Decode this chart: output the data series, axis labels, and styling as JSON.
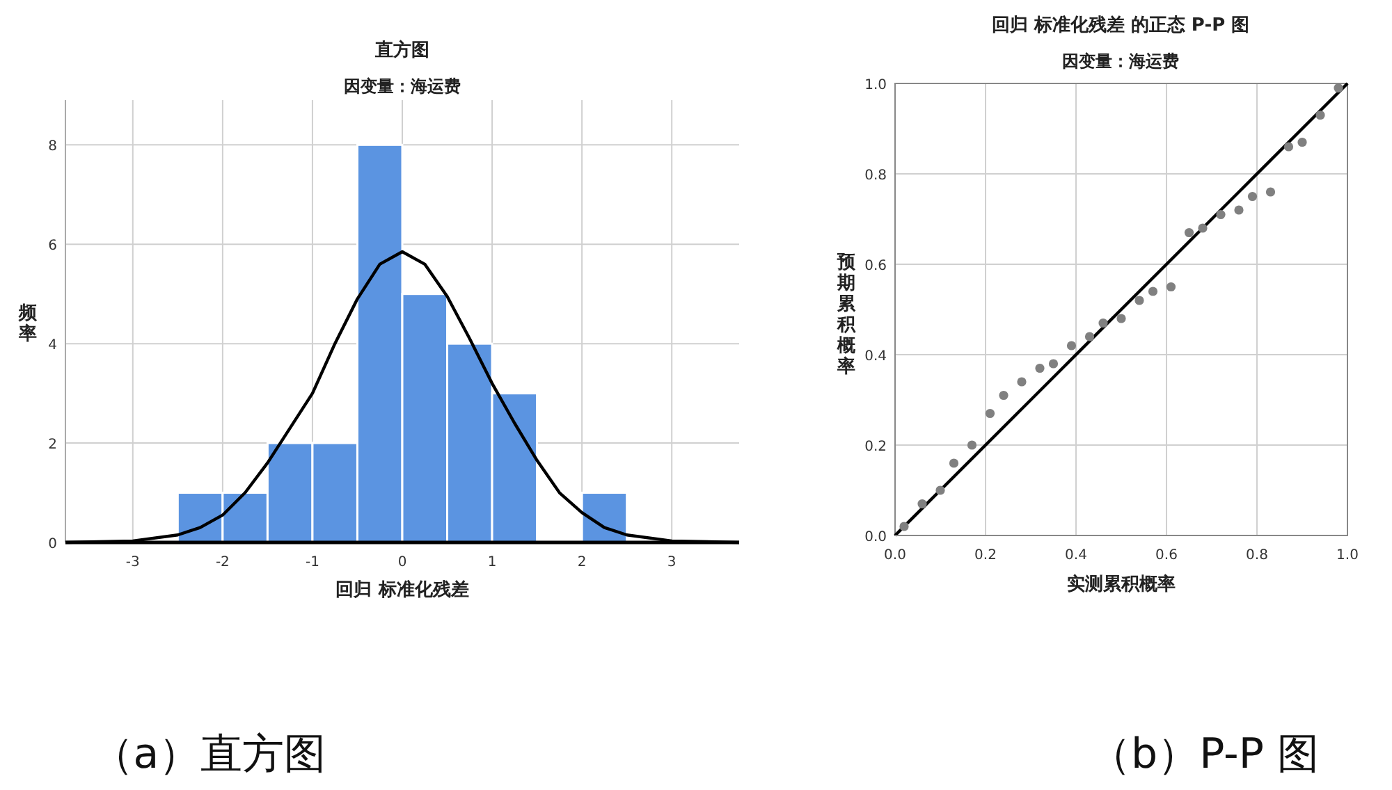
{
  "chart_data": [
    {
      "type": "histogram",
      "title": "直方图",
      "subtitle": "因变量：海运费",
      "xlabel": "回归 标准化残差",
      "ylabel": "频率",
      "bins": [
        -2.5,
        -2,
        -1.5,
        -1,
        -0.5,
        0,
        0.5,
        1,
        1.5,
        2,
        2.5
      ],
      "values": [
        1,
        1,
        2,
        2,
        8,
        5,
        4,
        3,
        0,
        1
      ],
      "color": "#5b94e1",
      "xlim": [
        -3.75,
        3.75
      ],
      "ylim": [
        0,
        8.9
      ],
      "xticks": [
        -3,
        -2,
        -1,
        0,
        1,
        2,
        3
      ],
      "yticks": [
        0,
        2,
        4,
        6,
        8
      ],
      "grid": true,
      "series": [
        {
          "type": "line",
          "color": "#000000",
          "x": [
            -3.75,
            -3,
            -2.5,
            -2.25,
            -2,
            -1.75,
            -1.5,
            -1.25,
            -1,
            -0.75,
            -0.5,
            -0.25,
            0,
            0.25,
            0.5,
            0.75,
            1,
            1.25,
            1.5,
            1.75,
            2,
            2.25,
            2.5,
            3,
            3.75
          ],
          "values": [
            0,
            0.03,
            0.15,
            0.3,
            0.55,
            1,
            1.6,
            2.3,
            3,
            4,
            4.9,
            5.6,
            5.85,
            5.6,
            4.95,
            4.1,
            3.2,
            2.4,
            1.65,
            1,
            0.6,
            0.3,
            0.15,
            0.03,
            0
          ]
        }
      ],
      "annotations": [
        "（a）直方图"
      ]
    },
    {
      "type": "scatter",
      "title": "回归 标准化残差 的正态 P-P 图",
      "subtitle": "因变量：海运费",
      "xlabel": "实测累积概率",
      "ylabel": "预期累积概率",
      "xlim": [
        0,
        1
      ],
      "ylim": [
        0,
        1
      ],
      "xticks": [
        {
          "value": 0,
          "label": "0.0"
        },
        0.2,
        0.4,
        0.6,
        0.8,
        {
          "value": 1,
          "label": "1.0"
        }
      ],
      "yticks": [
        {
          "value": 0,
          "label": "0.0"
        },
        0.2,
        0.4,
        0.6,
        0.8,
        {
          "value": 1,
          "label": "1.0"
        }
      ],
      "grid": true,
      "series": [
        {
          "type": "scatter",
          "marker": "circle",
          "color": "#808080",
          "x": [
            0.02,
            0.06,
            0.1,
            0.13,
            0.17,
            0.21,
            0.24,
            0.28,
            0.32,
            0.35,
            0.39,
            0.43,
            0.46,
            0.5,
            0.54,
            0.57,
            0.61,
            0.65,
            0.68,
            0.72,
            0.76,
            0.79,
            0.83,
            0.87,
            0.9,
            0.94,
            0.98
          ],
          "values": [
            0.02,
            0.07,
            0.1,
            0.16,
            0.2,
            0.27,
            0.31,
            0.34,
            0.37,
            0.38,
            0.42,
            0.44,
            0.47,
            0.48,
            0.52,
            0.54,
            0.55,
            0.67,
            0.68,
            0.71,
            0.72,
            0.75,
            0.76,
            0.86,
            0.87,
            0.93,
            0.99
          ]
        },
        {
          "type": "line",
          "color": "#000000",
          "x": [
            0,
            1
          ],
          "values": [
            0,
            1
          ]
        }
      ],
      "annotations": [
        "（b）P-P 图"
      ]
    }
  ]
}
